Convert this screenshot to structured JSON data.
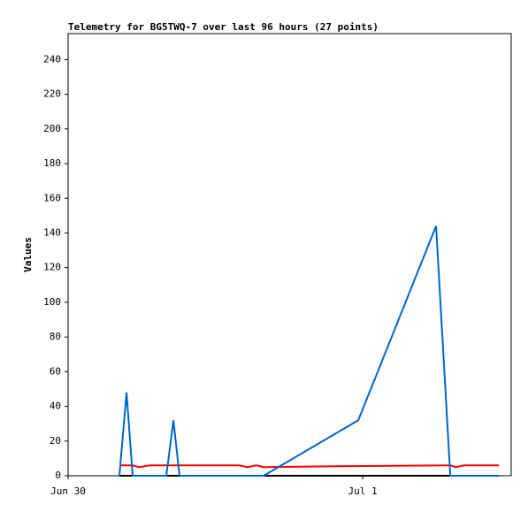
{
  "chart_data": {
    "type": "line",
    "title": "Telemetry for BG5TWQ-7 over last 96 hours (27 points)",
    "y_label": "Values",
    "xlim": [
      0,
      36.1
    ],
    "xticks": [
      {
        "value": 0,
        "label": "Jun 30"
      },
      {
        "value": 24,
        "label": "Jul 1"
      }
    ],
    "ylim": [
      0,
      255
    ],
    "yticks": [
      0,
      20,
      40,
      60,
      80,
      100,
      120,
      140,
      160,
      180,
      200,
      220,
      240
    ],
    "series": [
      {
        "color": "#000000",
        "x": [
          4.18,
          35.1
        ],
        "values": [
          0,
          0
        ]
      },
      {
        "color": "#ff0000",
        "x": [
          4.18,
          5.26,
          5.77,
          6.7,
          13.91,
          14.63,
          15.35,
          15.93,
          21.84,
          31.14,
          31.57,
          32.29,
          35.1
        ],
        "values": [
          6,
          6,
          5,
          6,
          6,
          5,
          6,
          5,
          5.5,
          6,
          5,
          6,
          6
        ]
      },
      {
        "color": "#0066cc",
        "x": [
          4.18,
          4.76,
          5.26,
          8.0,
          8.58,
          9.08,
          15.93,
          23.64,
          29.98,
          31.14,
          35.1
        ],
        "values": [
          0,
          48,
          0,
          0,
          32,
          0,
          0,
          32,
          144,
          0,
          0
        ]
      }
    ]
  }
}
